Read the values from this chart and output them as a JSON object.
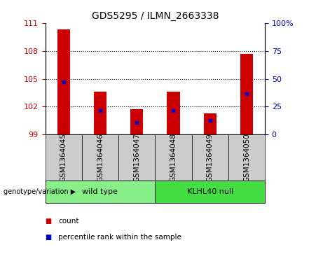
{
  "title": "GDS5295 / ILMN_2663338",
  "categories": [
    "GSM1364045",
    "GSM1364046",
    "GSM1364047",
    "GSM1364048",
    "GSM1364049",
    "GSM1364050"
  ],
  "bar_tops": [
    110.3,
    103.6,
    101.75,
    103.6,
    101.3,
    107.7
  ],
  "bar_base": 99,
  "percentile_values": [
    104.7,
    101.6,
    100.3,
    101.6,
    100.5,
    103.35
  ],
  "ylim_left": [
    99,
    111
  ],
  "ylim_right": [
    0,
    100
  ],
  "yticks_left": [
    99,
    102,
    105,
    108,
    111
  ],
  "yticks_right": [
    0,
    25,
    50,
    75,
    100
  ],
  "ytick_labels_right": [
    "0",
    "25",
    "50",
    "75",
    "100%"
  ],
  "bar_color": "#cc0000",
  "blue_color": "#0000cc",
  "group1_label": "wild type",
  "group2_label": "KLHL40 null",
  "group1_color": "#88ee88",
  "group2_color": "#44dd44",
  "group_label_prefix": "genotype/variation",
  "legend_count_label": "count",
  "legend_pct_label": "percentile rank within the sample",
  "tick_label_color_left": "#cc0000",
  "tick_label_color_right": "#0000cc",
  "bg_color": "#ffffff",
  "plot_bg": "#ffffff",
  "xticklabel_bg": "#cccccc",
  "bar_width": 0.35,
  "title_fontsize": 10,
  "tick_fontsize": 8,
  "label_fontsize": 7.5
}
